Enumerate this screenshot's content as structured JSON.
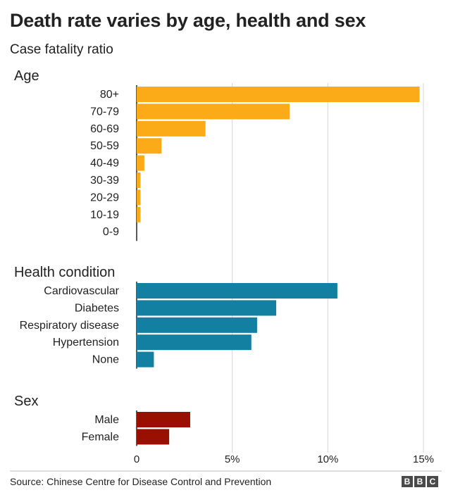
{
  "title": "Death rate varies by age, health and sex",
  "subtitle": "Case fatality ratio",
  "source": "Source: Chinese Centre for Disease Control and Prevention",
  "logo": [
    "B",
    "B",
    "C"
  ],
  "chart_data": {
    "type": "bar",
    "orientation": "horizontal",
    "xlim": [
      0,
      15
    ],
    "x_ticks": [
      0,
      5,
      10,
      15
    ],
    "x_tick_labels": [
      "0",
      "5%",
      "10%",
      "15%"
    ],
    "grid": true,
    "unit": "%",
    "groups": [
      {
        "name": "Age",
        "color": "#fbab18",
        "categories": [
          "80+",
          "70-79",
          "60-69",
          "50-59",
          "40-49",
          "30-39",
          "20-29",
          "10-19",
          "0-9"
        ],
        "values": [
          14.8,
          8.0,
          3.6,
          1.3,
          0.4,
          0.2,
          0.2,
          0.2,
          0.0
        ]
      },
      {
        "name": "Health condition",
        "color": "#1380a1",
        "categories": [
          "Cardiovascular",
          "Diabetes",
          "Respiratory disease",
          "Hypertension",
          "None"
        ],
        "values": [
          10.5,
          7.3,
          6.3,
          6.0,
          0.9
        ]
      },
      {
        "name": "Sex",
        "color": "#990f00",
        "categories": [
          "Male",
          "Female"
        ],
        "values": [
          2.8,
          1.7
        ]
      }
    ]
  }
}
